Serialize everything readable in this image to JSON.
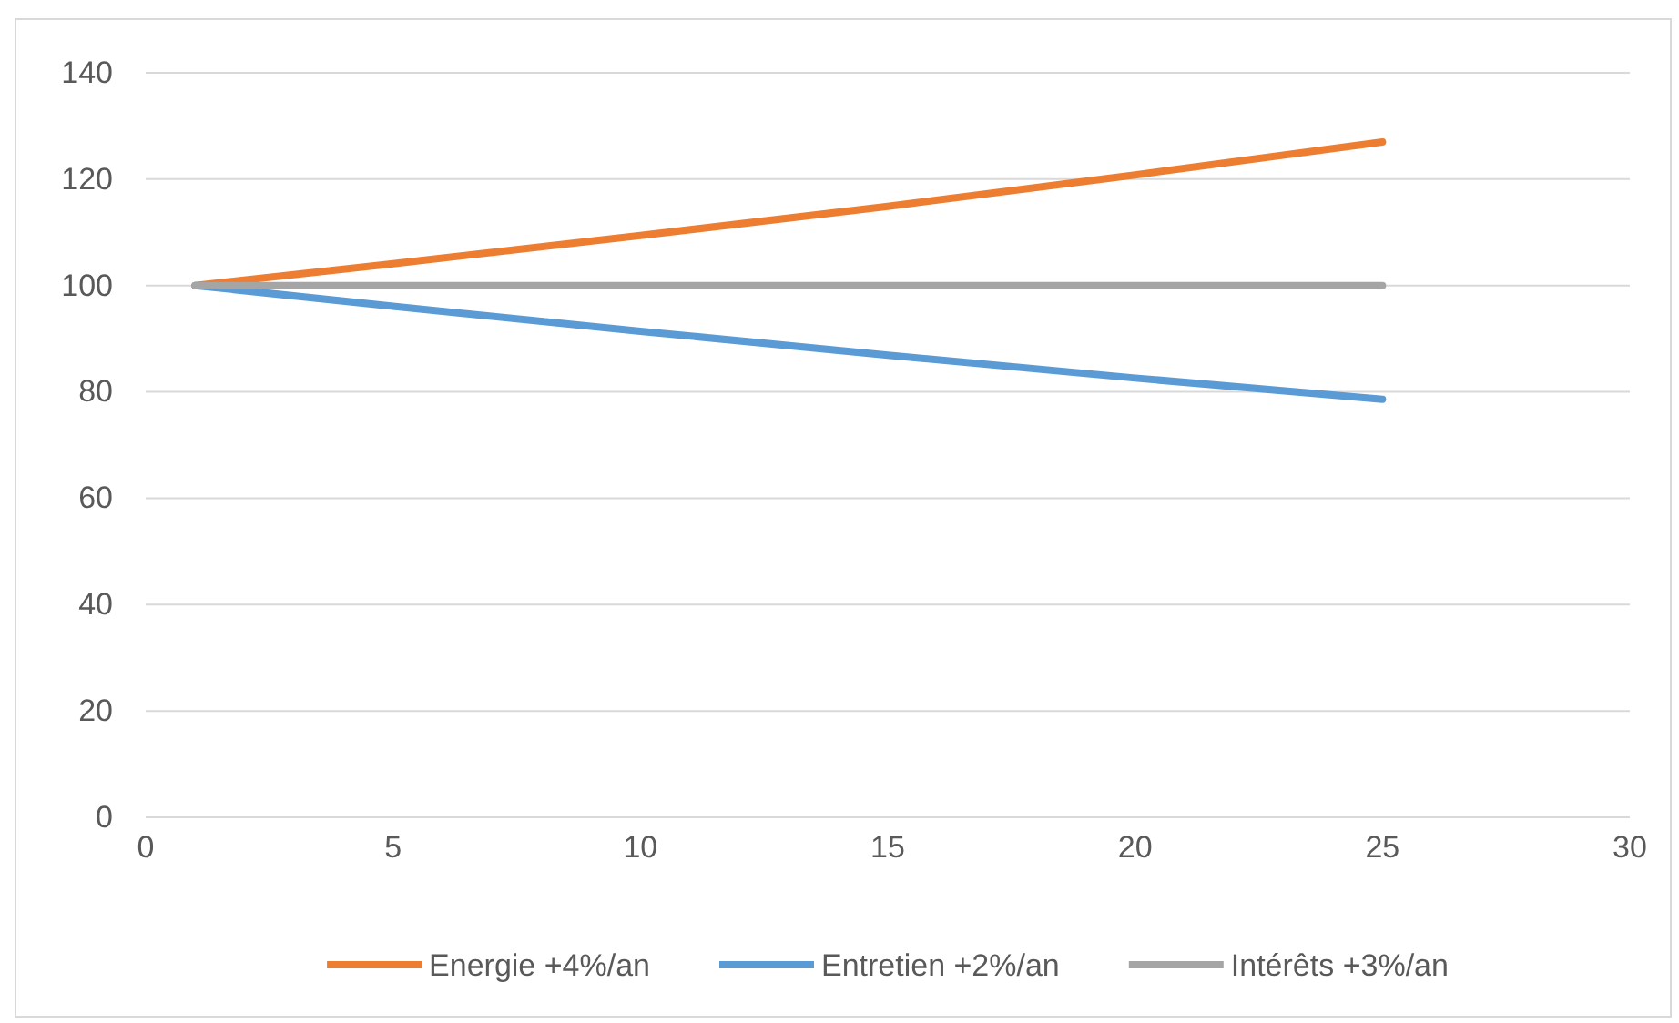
{
  "chart_data": {
    "type": "line",
    "x": [
      1,
      5,
      10,
      15,
      20,
      25
    ],
    "series": [
      {
        "name": "Energie +4%/an",
        "color": "#ed7d31",
        "values": [
          100,
          104.1,
          109.4,
          114.9,
          120.8,
          127
        ]
      },
      {
        "name": "Entretien +2%/an",
        "color": "#5b9bd5",
        "values": [
          100,
          96.1,
          91.4,
          86.9,
          82.6,
          78.6
        ]
      },
      {
        "name": "Intérêts +3%/an",
        "color": "#a5a5a5",
        "values": [
          100,
          100,
          100,
          100,
          100,
          100
        ]
      }
    ],
    "xlim": [
      0,
      30
    ],
    "xticks": [
      0,
      5,
      10,
      15,
      20,
      25,
      30
    ],
    "ylim": [
      0,
      140
    ],
    "yticks": [
      0,
      20,
      40,
      60,
      80,
      100,
      120,
      140
    ],
    "grid": "y",
    "legend": "bottom",
    "marker": "none",
    "line_style": "solid"
  }
}
